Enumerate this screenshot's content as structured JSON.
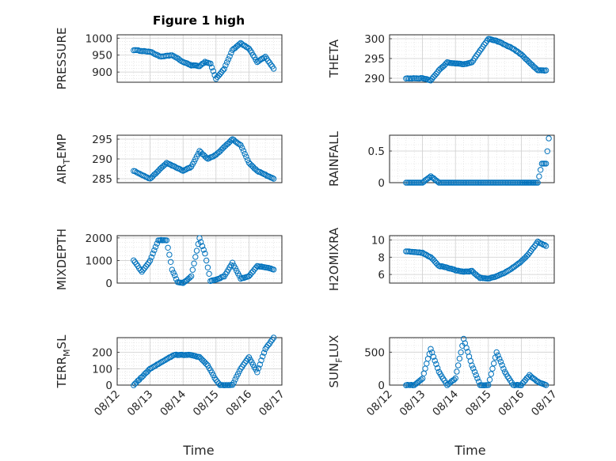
{
  "title": "Figure 1 high",
  "xlabel": "Time",
  "date_ticks": [
    "08/12",
    "08/13",
    "08/14",
    "08/15",
    "08/16",
    "08/17"
  ],
  "marker_color": "#0072BD",
  "grid_color": "#d9d9d9",
  "chart_data": [
    {
      "type": "scatter",
      "ylabel": "PRESSURE",
      "ylabel_sub": "",
      "ylabel_post": "",
      "ylim": [
        870,
        1010
      ],
      "yticks": [
        900,
        950,
        1000
      ],
      "grid": "on",
      "x": [
        "08/12 12:00",
        "08/13 00:00",
        "08/13 08:00",
        "08/13 16:00",
        "08/14 00:00",
        "08/14 06:00",
        "08/14 12:00",
        "08/14 16:00",
        "08/14 20:00",
        "08/15 00:00",
        "08/15 06:00",
        "08/15 12:00",
        "08/15 18:00",
        "08/16 00:00",
        "08/16 06:00",
        "08/16 12:00",
        "08/16 18:00"
      ],
      "y": [
        965,
        960,
        945,
        950,
        930,
        920,
        918,
        930,
        925,
        880,
        910,
        965,
        985,
        970,
        930,
        945,
        910
      ]
    },
    {
      "type": "scatter",
      "ylabel": "THETA",
      "ylabel_sub": "",
      "ylabel_post": "",
      "ylim": [
        289,
        301
      ],
      "yticks": [
        290,
        295,
        300
      ],
      "grid": "on",
      "x": [
        "08/12 12:00",
        "08/13 00:00",
        "08/13 06:00",
        "08/13 12:00",
        "08/13 18:00",
        "08/14 00:00",
        "08/14 06:00",
        "08/14 12:00",
        "08/14 18:00",
        "08/15 00:00",
        "08/15 06:00",
        "08/15 12:00",
        "08/15 18:00",
        "08/16 00:00",
        "08/16 06:00",
        "08/16 12:00",
        "08/16 18:00"
      ],
      "y": [
        290,
        290,
        289.5,
        292,
        294,
        293.8,
        293.5,
        294,
        297,
        300,
        299.5,
        298.5,
        297.5,
        296,
        294,
        292,
        292
      ]
    },
    {
      "type": "scatter",
      "ylabel": "AIR",
      "ylabel_sub": "T",
      "ylabel_post": "EMP",
      "ylim": [
        284,
        296
      ],
      "yticks": [
        285,
        290,
        295
      ],
      "grid": "on",
      "x": [
        "08/12 12:00",
        "08/13 00:00",
        "08/13 06:00",
        "08/13 12:00",
        "08/13 18:00",
        "08/14 00:00",
        "08/14 06:00",
        "08/14 12:00",
        "08/14 18:00",
        "08/15 00:00",
        "08/15 06:00",
        "08/15 12:00",
        "08/15 18:00",
        "08/16 00:00",
        "08/16 06:00",
        "08/16 12:00",
        "08/16 18:00"
      ],
      "y": [
        287,
        285,
        287,
        289,
        288,
        287,
        288,
        292,
        290,
        291,
        293,
        295,
        293.5,
        289,
        287,
        286,
        285
      ]
    },
    {
      "type": "scatter",
      "ylabel": "RAINFALL",
      "ylabel_sub": "",
      "ylabel_post": "",
      "ylim": [
        0,
        0.75
      ],
      "yticks": [
        0,
        0.5
      ],
      "grid": "on",
      "x": [
        "08/12 12:00",
        "08/13 00:00",
        "08/13 06:00",
        "08/13 12:00",
        "08/14 00:00",
        "08/14 12:00",
        "08/15 00:00",
        "08/15 12:00",
        "08/16 00:00",
        "08/16 06:00",
        "08/16 12:00",
        "08/16 15:00",
        "08/16 18:00",
        "08/16 20:00"
      ],
      "y": [
        0,
        0,
        0.1,
        0,
        0,
        0,
        0,
        0,
        0,
        0,
        0,
        0.3,
        0.3,
        0.7
      ]
    },
    {
      "type": "scatter",
      "ylabel": "MIXDEPTH",
      "ylabel_sub": "",
      "ylabel_post": "",
      "ylim": [
        0,
        2100
      ],
      "yticks": [
        0,
        1000,
        2000
      ],
      "grid": "on",
      "x": [
        "08/12 12:00",
        "08/12 18:00",
        "08/13 00:00",
        "08/13 06:00",
        "08/13 12:00",
        "08/13 16:00",
        "08/13 20:00",
        "08/14 00:00",
        "08/14 06:00",
        "08/14 12:00",
        "08/14 16:00",
        "08/14 20:00",
        "08/15 00:00",
        "08/15 06:00",
        "08/15 12:00",
        "08/15 18:00",
        "08/16 00:00",
        "08/16 06:00",
        "08/16 12:00",
        "08/16 18:00"
      ],
      "y": [
        1000,
        500,
        1000,
        1900,
        1900,
        600,
        50,
        0,
        300,
        2000,
        1300,
        100,
        150,
        300,
        900,
        200,
        300,
        750,
        700,
        600
      ]
    },
    {
      "type": "scatter",
      "ylabel": "H2OMIXRA",
      "ylabel_sub": "",
      "ylabel_post": "",
      "ylim": [
        5,
        10.5
      ],
      "yticks": [
        6,
        8,
        10
      ],
      "grid": "on",
      "x": [
        "08/12 12:00",
        "08/13 00:00",
        "08/13 06:00",
        "08/13 12:00",
        "08/13 18:00",
        "08/14 00:00",
        "08/14 06:00",
        "08/14 12:00",
        "08/14 18:00",
        "08/15 00:00",
        "08/15 06:00",
        "08/15 12:00",
        "08/15 18:00",
        "08/16 00:00",
        "08/16 06:00",
        "08/16 12:00",
        "08/16 18:00"
      ],
      "y": [
        8.7,
        8.5,
        8,
        7,
        6.8,
        6.5,
        6.3,
        6.4,
        5.6,
        5.5,
        5.8,
        6.2,
        6.8,
        7.5,
        8.5,
        9.8,
        9.3
      ]
    },
    {
      "type": "scatter",
      "ylabel": "TERR",
      "ylabel_sub": "M",
      "ylabel_post": "SL",
      "ylim": [
        0,
        290
      ],
      "yticks": [
        0,
        100,
        200
      ],
      "grid": "on",
      "x": [
        "08/12 12:00",
        "08/12 18:00",
        "08/13 00:00",
        "08/13 06:00",
        "08/13 12:00",
        "08/13 18:00",
        "08/14 00:00",
        "08/14 06:00",
        "08/14 12:00",
        "08/14 18:00",
        "08/15 00:00",
        "08/15 03:00",
        "08/15 06:00",
        "08/15 12:00",
        "08/15 18:00",
        "08/16 00:00",
        "08/16 06:00",
        "08/16 12:00",
        "08/16 18:00"
      ],
      "y": [
        0,
        50,
        100,
        130,
        160,
        185,
        185,
        185,
        170,
        120,
        30,
        0,
        0,
        0,
        100,
        170,
        80,
        220,
        290
      ]
    },
    {
      "type": "scatter",
      "ylabel": "SUN",
      "ylabel_sub": "F",
      "ylabel_post": "LUX",
      "ylim": [
        0,
        720
      ],
      "yticks": [
        0,
        500
      ],
      "grid": "on",
      "x": [
        "08/12 12:00",
        "08/12 18:00",
        "08/13 00:00",
        "08/13 06:00",
        "08/13 12:00",
        "08/13 18:00",
        "08/14 00:00",
        "08/14 06:00",
        "08/14 12:00",
        "08/14 18:00",
        "08/15 00:00",
        "08/15 06:00",
        "08/15 12:00",
        "08/15 18:00",
        "08/16 00:00",
        "08/16 06:00",
        "08/16 12:00",
        "08/16 18:00"
      ],
      "y": [
        0,
        0,
        100,
        550,
        200,
        0,
        100,
        700,
        300,
        0,
        0,
        500,
        200,
        0,
        0,
        150,
        50,
        0
      ]
    }
  ]
}
